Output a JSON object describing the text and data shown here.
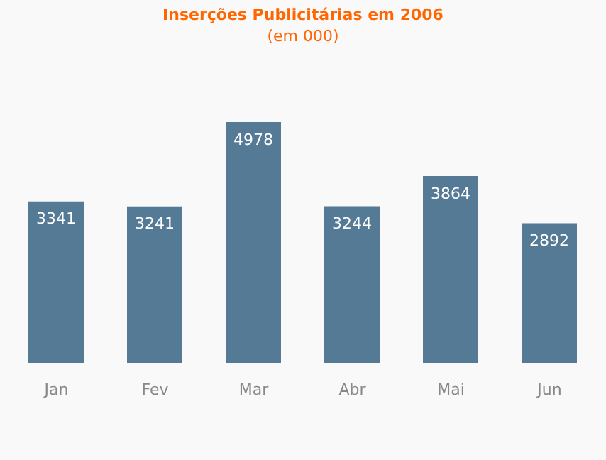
{
  "chart_data": {
    "type": "bar",
    "title": "Inserções Publicitárias em 2006",
    "subtitle": "(em 000)",
    "categories": [
      "Jan",
      "Fev",
      "Mar",
      "Abr",
      "Mai",
      "Jun"
    ],
    "values": [
      3341,
      3241,
      4978,
      3244,
      3864,
      2892
    ],
    "color": "#557a96",
    "data_labels": true,
    "grid": false,
    "legend": false
  }
}
